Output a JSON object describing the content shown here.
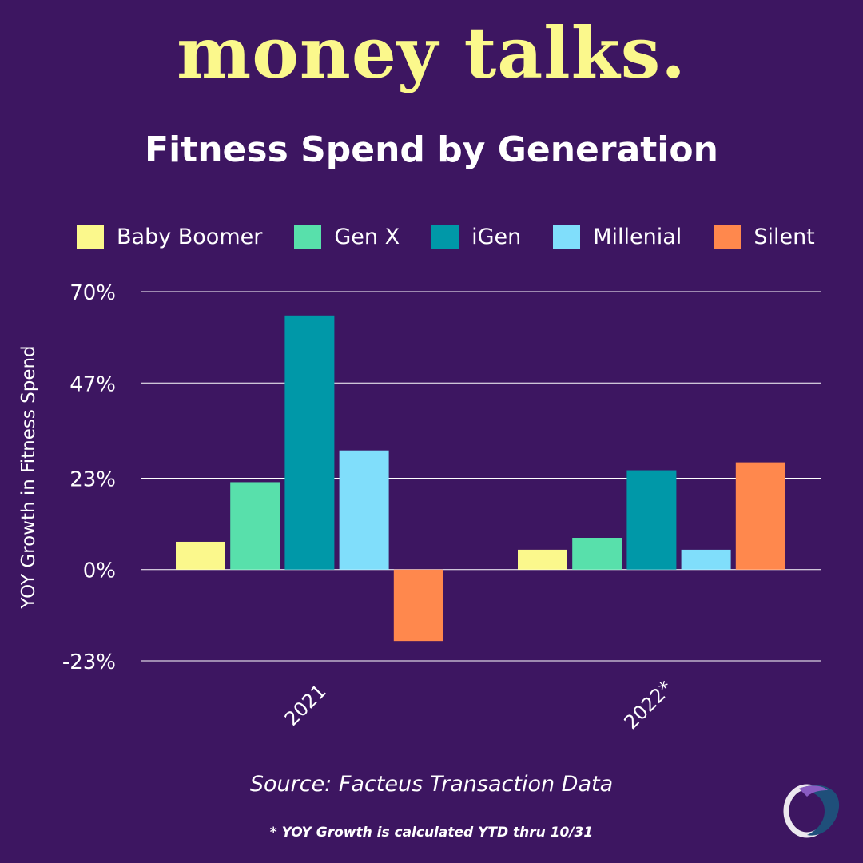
{
  "brand": {
    "wordmark": "money talks."
  },
  "colors": {
    "background": "#3d1661",
    "brand": "#fbf88c",
    "gridline": "#ffffff",
    "text": "#ffffff"
  },
  "chart_data": {
    "type": "bar",
    "title": "Fitness Spend by Generation",
    "xlabel": "",
    "ylabel": "YOY Growth in Fitness Spend",
    "categories": [
      "2021",
      "2022*"
    ],
    "series": [
      {
        "name": "Baby Boomer",
        "color": "#fbf88c",
        "values": [
          7,
          5
        ]
      },
      {
        "name": "Gen X",
        "color": "#58e0ab",
        "values": [
          22,
          8
        ]
      },
      {
        "name": "iGen",
        "color": "#0098a8",
        "values": [
          64,
          25
        ]
      },
      {
        "name": "Millenial",
        "color": "#80defb",
        "values": [
          30,
          5
        ]
      },
      {
        "name": "Silent",
        "color": "#ff884d",
        "values": [
          -18,
          27
        ]
      }
    ],
    "yticks": [
      -23,
      0,
      23,
      47,
      70
    ],
    "ytick_labels": [
      "-23%",
      "0%",
      "23%",
      "47%",
      "70%"
    ],
    "ylim": [
      -23,
      70
    ],
    "grid": true,
    "legend": "top"
  },
  "source": "Source:  Facteus Transaction Data",
  "footnote": "* YOY Growth is calculated YTD thru 10/31",
  "logo_icon": "facteus-logo-icon"
}
